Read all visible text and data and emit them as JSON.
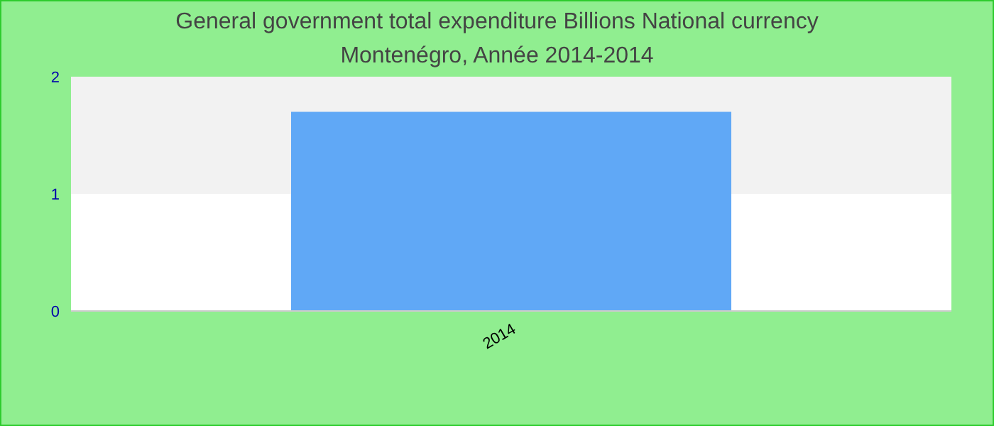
{
  "chart_data": {
    "type": "bar",
    "title": "General government total expenditure Billions National currency",
    "subtitle": "Montenégro, Année 2014-2014",
    "categories": [
      "2014"
    ],
    "values": [
      1.7
    ],
    "color": "#60a8f6",
    "ylim": [
      0,
      2
    ],
    "yticks": [
      0,
      1,
      2
    ],
    "bands": [
      {
        "axis": "y",
        "from": 1,
        "to": 2,
        "color": "#f2f2f2"
      }
    ]
  }
}
